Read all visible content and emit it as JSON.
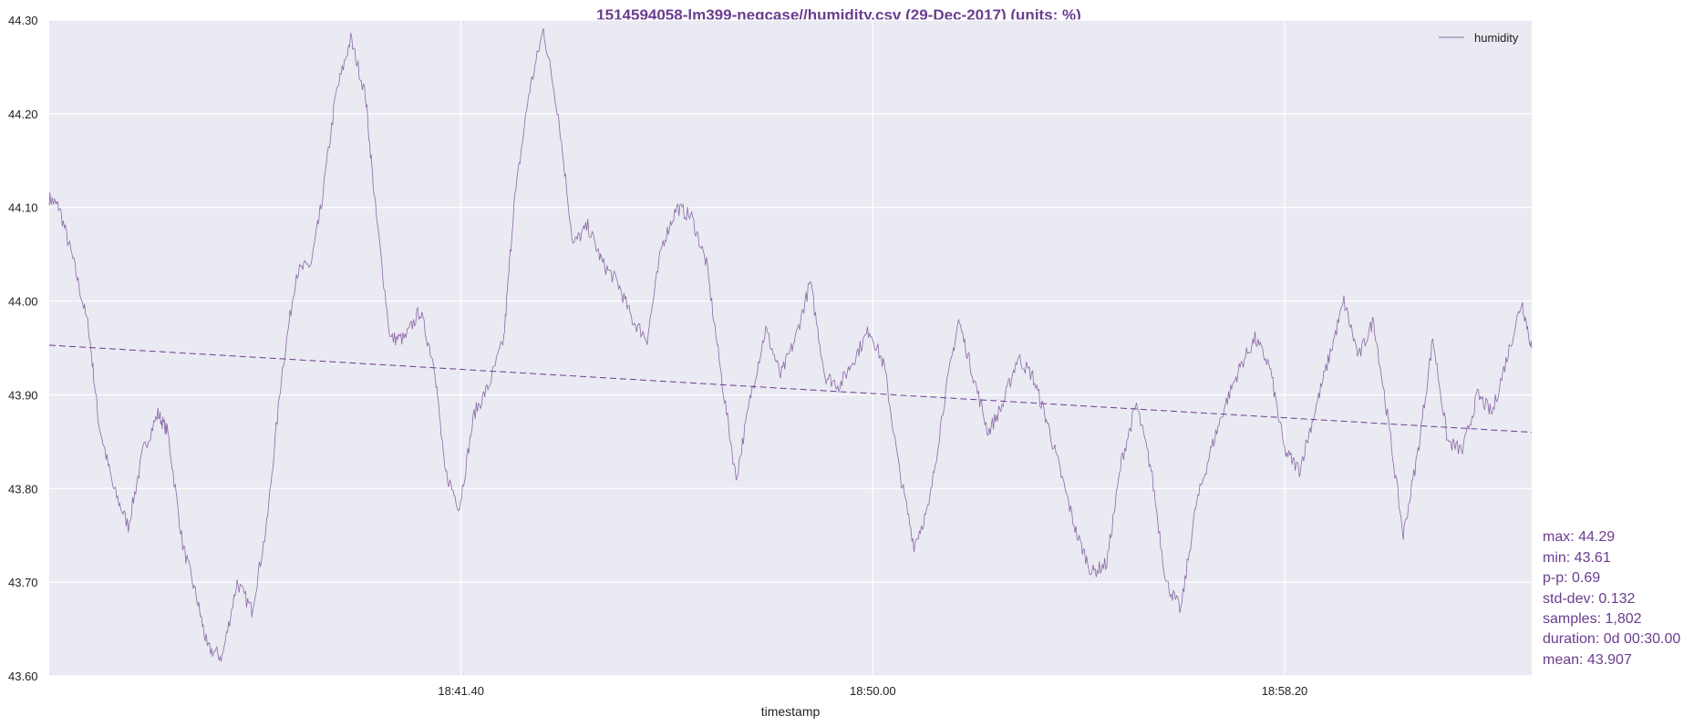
{
  "colors": {
    "accent": "#6a3d8f",
    "series": "#8c6aa8",
    "plot_bg": "#eaeaf2",
    "grid": "#ffffff"
  },
  "chart_data": {
    "type": "line",
    "title": "1514594058-lm399-negcase//humidity.csv (29-Dec-2017) (units: %)",
    "xlabel": "timestamp",
    "ylabel": "",
    "x_range": [
      "18:33:20",
      "19:03:20"
    ],
    "ylim": [
      43.6,
      44.3
    ],
    "y_ticks": [
      "43.60",
      "43.70",
      "43.80",
      "43.90",
      "44.00",
      "44.10",
      "44.20",
      "44.30"
    ],
    "x_ticks": [
      "18:41.40",
      "18:50.00",
      "18:58.20"
    ],
    "x_tick_minutes": [
      8.333,
      16.667,
      25.0
    ],
    "grid": true,
    "legend_position": "top-right",
    "series": [
      {
        "name": "humidity",
        "x_minutes": [
          0.0,
          0.2,
          0.5,
          0.8,
          1.0,
          1.3,
          1.6,
          1.9,
          2.2,
          2.4,
          2.7,
          3.0,
          3.2,
          3.5,
          3.8,
          4.1,
          4.4,
          4.7,
          5.0,
          5.3,
          5.5,
          5.8,
          6.1,
          6.4,
          6.6,
          6.9,
          7.2,
          7.5,
          7.8,
          8.0,
          8.3,
          8.6,
          8.9,
          9.2,
          9.4,
          9.7,
          10.0,
          10.3,
          10.6,
          10.9,
          11.2,
          11.5,
          11.8,
          12.1,
          12.4,
          12.7,
          13.0,
          13.3,
          13.6,
          13.9,
          14.2,
          14.5,
          14.8,
          15.1,
          15.4,
          15.7,
          16.0,
          16.3,
          16.6,
          16.9,
          17.2,
          17.5,
          17.8,
          18.1,
          18.4,
          18.7,
          19.0,
          19.3,
          19.6,
          19.9,
          20.2,
          20.5,
          20.8,
          21.1,
          21.4,
          21.7,
          22.0,
          22.3,
          22.6,
          22.9,
          23.2,
          23.5,
          23.8,
          24.1,
          24.4,
          24.7,
          25.0,
          25.3,
          25.6,
          25.9,
          26.2,
          26.5,
          26.8,
          27.1,
          27.4,
          27.7,
          28.0,
          28.3,
          28.6,
          28.9,
          29.2,
          29.5,
          29.8,
          30.0
        ],
        "values": [
          44.11,
          44.1,
          44.04,
          43.97,
          43.87,
          43.8,
          43.76,
          43.84,
          43.88,
          43.86,
          43.74,
          43.68,
          43.63,
          43.62,
          43.7,
          43.67,
          43.76,
          43.92,
          44.03,
          44.04,
          44.1,
          44.22,
          44.28,
          44.22,
          44.1,
          43.96,
          43.96,
          43.99,
          43.93,
          43.82,
          43.78,
          43.88,
          43.91,
          43.96,
          44.1,
          44.22,
          44.29,
          44.2,
          44.06,
          44.08,
          44.04,
          44.02,
          43.98,
          43.96,
          44.06,
          44.1,
          44.09,
          44.04,
          43.92,
          43.81,
          43.9,
          43.97,
          43.92,
          43.96,
          44.02,
          43.92,
          43.91,
          43.94,
          43.97,
          43.93,
          43.82,
          43.74,
          43.78,
          43.89,
          43.98,
          43.92,
          43.86,
          43.89,
          43.94,
          43.92,
          43.87,
          43.81,
          43.75,
          43.71,
          43.72,
          43.83,
          43.89,
          43.82,
          43.7,
          43.67,
          43.78,
          43.84,
          43.89,
          43.93,
          43.96,
          43.93,
          43.84,
          43.82,
          43.88,
          43.94,
          44.0,
          43.94,
          43.98,
          43.87,
          43.75,
          43.84,
          43.96,
          43.85,
          43.84,
          43.9,
          43.88,
          43.94,
          44.0,
          43.95
        ],
        "noise_amplitude": 0.008
      },
      {
        "name": "",
        "style": "dashed",
        "x_minutes": [
          0.0,
          30.0
        ],
        "values": [
          43.953,
          43.86
        ]
      }
    ],
    "stats": {
      "max": "max: 44.29",
      "min": "min: 43.61",
      "pp": "p-p: 0.69",
      "std": "std-dev: 0.132",
      "samples": "samples: 1,802",
      "duration": "duration: 0d 00:30.00",
      "mean": "mean: 43.907"
    }
  }
}
